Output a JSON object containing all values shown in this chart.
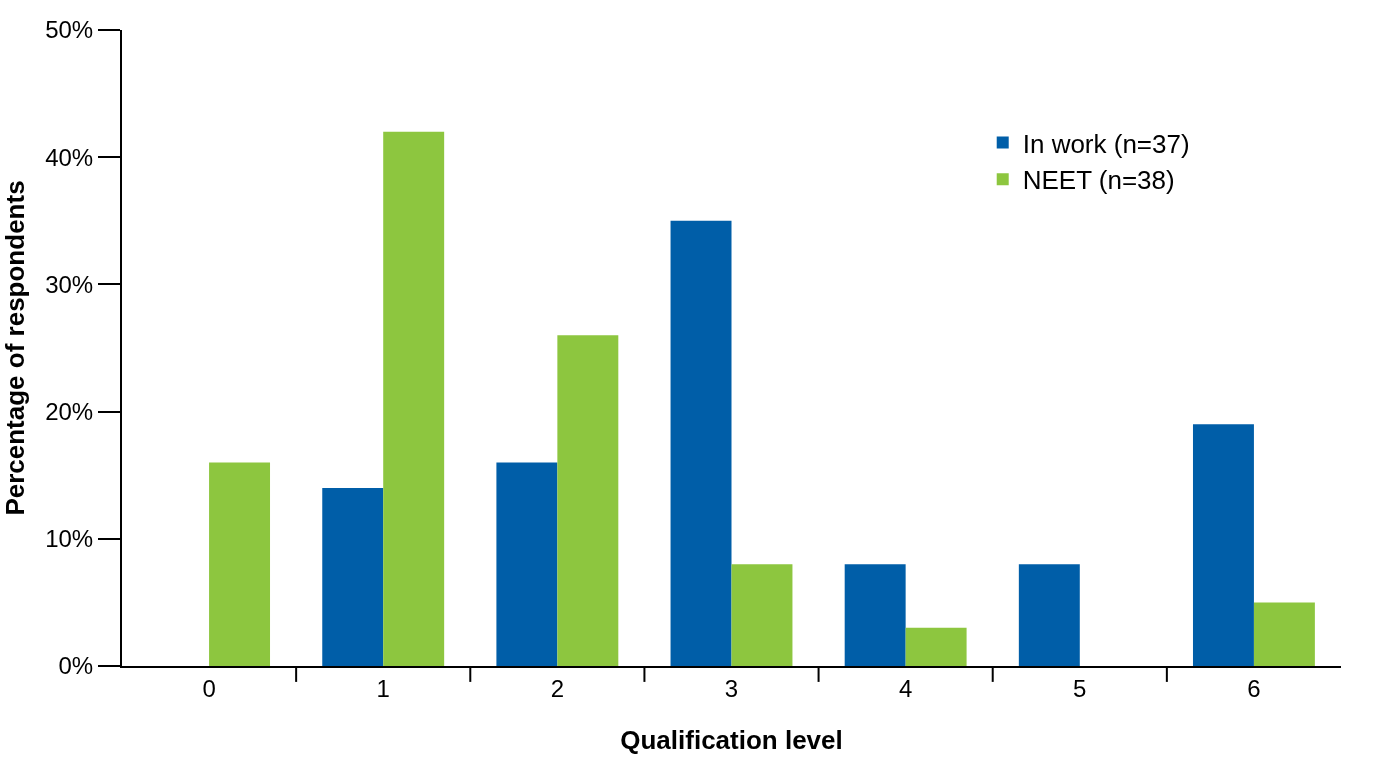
{
  "chart_data": {
    "type": "bar",
    "xlabel": "Qualification level",
    "ylabel": "Percentage of respondents",
    "categories": [
      "0",
      "1",
      "2",
      "3",
      "4",
      "5",
      "6"
    ],
    "series": [
      {
        "name": "In work (n=37)",
        "color": "#005ea8",
        "values": [
          0,
          14,
          16,
          35,
          8,
          8,
          19
        ]
      },
      {
        "name": "NEET (n=38)",
        "color": "#8dc63f",
        "values": [
          16,
          42,
          26,
          8,
          3,
          0,
          5
        ]
      }
    ],
    "ylim": [
      0,
      50
    ],
    "yticks": [
      {
        "value": 0,
        "label": "0%"
      },
      {
        "value": 10,
        "label": "10%"
      },
      {
        "value": 20,
        "label": "20%"
      },
      {
        "value": 30,
        "label": "30%"
      },
      {
        "value": 40,
        "label": "40%"
      },
      {
        "value": 50,
        "label": "50%"
      }
    ],
    "legend": "top right"
  }
}
